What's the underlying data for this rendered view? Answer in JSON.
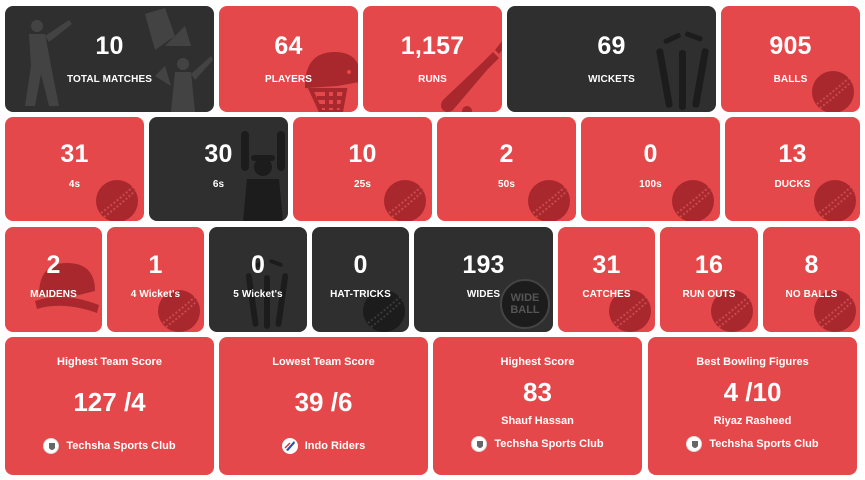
{
  "stats": {
    "total_matches": {
      "value": "10",
      "label": "TOTAL MATCHES"
    },
    "players": {
      "value": "64",
      "label": "PLAYERS"
    },
    "runs": {
      "value": "1,157",
      "label": "RUNS"
    },
    "wickets": {
      "value": "69",
      "label": "WICKETS"
    },
    "balls": {
      "value": "905",
      "label": "BALLS"
    },
    "fours": {
      "value": "31",
      "label": "4s"
    },
    "sixes": {
      "value": "30",
      "label": "6s"
    },
    "twentyfives": {
      "value": "10",
      "label": "25s"
    },
    "fifties": {
      "value": "2",
      "label": "50s"
    },
    "hundreds": {
      "value": "0",
      "label": "100s"
    },
    "ducks": {
      "value": "13",
      "label": "DUCKS"
    },
    "maidens": {
      "value": "2",
      "label": "MAIDENS"
    },
    "four_wickets": {
      "value": "1",
      "label": "4 Wicket's"
    },
    "five_wickets": {
      "value": "0",
      "label": "5 Wicket's"
    },
    "hat_tricks": {
      "value": "0",
      "label": "HAT-TRICKS"
    },
    "wides": {
      "value": "193",
      "label": "WIDES"
    },
    "catches": {
      "value": "31",
      "label": "CATCHES"
    },
    "run_outs": {
      "value": "16",
      "label": "RUN OUTS"
    },
    "no_balls": {
      "value": "8",
      "label": "NO BALLS"
    }
  },
  "wide_ball_badge": {
    "line1": "WIDE",
    "line2": "BALL"
  },
  "highlights": {
    "highest_team_score": {
      "title": "Highest Team Score",
      "value": "127 /4",
      "team": "Techsha Sports Club"
    },
    "lowest_team_score": {
      "title": "Lowest Team Score",
      "value": "39 /6",
      "team": "Indo Riders"
    },
    "highest_score": {
      "title": "Highest Score",
      "value": "83",
      "player": "Shauf Hassan",
      "team": "Techsha Sports Club"
    },
    "best_bowling": {
      "title": "Best Bowling Figures",
      "value": "4 /10",
      "player": "Riyaz Rasheed",
      "team": "Techsha Sports Club"
    }
  },
  "colors": {
    "red": "#e5484a",
    "dark": "#2f2f2f",
    "deco_red": "#a8282e",
    "deco_dark": "#1c1c1c"
  },
  "icons": [
    "batsman-silhouette-icon",
    "cricket-helmet-icon",
    "cricket-bat-icon",
    "stumps-icon",
    "cricket-ball-icon",
    "umpire-six-signal-icon",
    "wide-ball-icon",
    "team-logo-icon"
  ]
}
